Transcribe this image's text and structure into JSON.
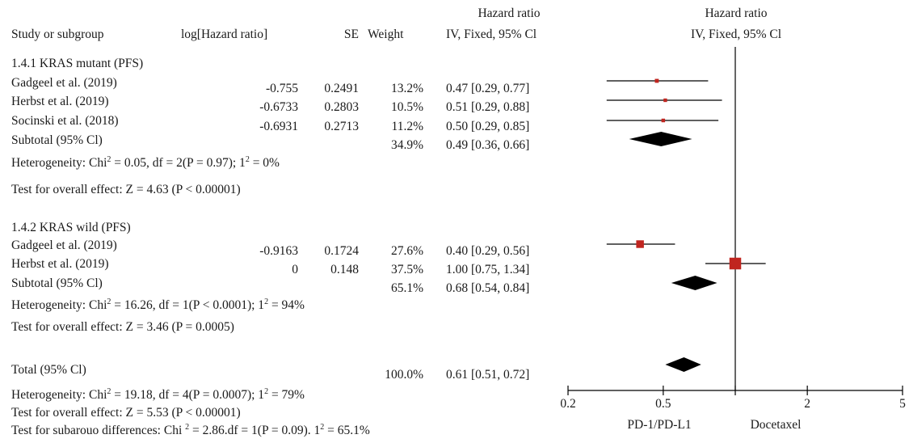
{
  "headers": {
    "study": "Study or subgroup",
    "loghr": "log[Hazard ratio]",
    "se": "SE",
    "weight": "Weight",
    "hr_top": "Hazard ratio",
    "hr_method": "IV, Fixed, 95% Cl",
    "plot_top": "Hazard ratio",
    "plot_method": "IV, Fixed, 95% Cl"
  },
  "groups": [
    {
      "title": "1.4.1 KRAS mutant (PFS)",
      "studies": [
        {
          "name": "Gadgeel et al. (2019)",
          "loghr": "-0.755",
          "se": "0.2491",
          "weight": "13.2%",
          "ci_text": "0.47 [0.29, 0.77]"
        },
        {
          "name": "Herbst et al. (2019)",
          "loghr": "-0.6733",
          "se": "0.2803",
          "weight": "10.5%",
          "ci_text": "0.51 [0.29, 0.88]"
        },
        {
          "name": "Socinski et al. (2018)",
          "loghr": "-0.6931",
          "se": "0.2713",
          "weight": "11.2%",
          "ci_text": "0.50 [0.29, 0.85]"
        }
      ],
      "subtotal": {
        "label": "Subtotal (95% Cl)",
        "weight": "34.9%",
        "ci_text": "0.49 [0.36, 0.66]"
      },
      "heterogeneity": {
        "pre": "Heterogeneity: Chi",
        "mid": " = 0.05, df = 2(P = 0.97); 1",
        "post": " = 0%"
      },
      "overall": "Test for overall effect: Z = 4.63 (P < 0.00001)"
    },
    {
      "title": "1.4.2 KRAS wild (PFS)",
      "studies": [
        {
          "name": "Gadgeel et al. (2019)",
          "loghr": "-0.9163",
          "se": "0.1724",
          "weight": "27.6%",
          "ci_text": "0.40 [0.29, 0.56]"
        },
        {
          "name": "Herbst et al. (2019)",
          "loghr": "0",
          "se": "0.148",
          "weight": "37.5%",
          "ci_text": "1.00 [0.75, 1.34]"
        }
      ],
      "subtotal": {
        "label": "Subtotal (95% Cl)",
        "weight": "65.1%",
        "ci_text": "0.68 [0.54, 0.84]"
      },
      "heterogeneity": {
        "pre": "Heterogeneity: Chi",
        "mid": " = 16.26, df = 1(P < 0.0001); 1",
        "post": " = 94%"
      },
      "overall": "Test for overall effect: Z = 3.46 (P = 0.0005)"
    }
  ],
  "total": {
    "label": "Total (95% Cl)",
    "weight": "100.0%",
    "ci_text": "0.61 [0.51, 0.72]",
    "heterogeneity": {
      "pre": "Heterogeneity: Chi",
      "mid": " = 19.18, df = 4(P = 0.0007); 1",
      "post": " = 79%"
    },
    "overall": "Test for overall effect: Z = 5.53 (P < 0.00001)",
    "subgroup": {
      "pre": "Test for subarouo differences: Chi ",
      "mid": " = 2.86.df = 1(P = 0.09). 1",
      "post": " = 65.1%"
    }
  },
  "superscript": "2",
  "axis": {
    "left_label": "PD-1/PD-L1",
    "right_label": "Docetaxel"
  },
  "colors": {
    "marker": "#c0251f",
    "diamond": "#000000",
    "lines": "#000000"
  },
  "chart_data": {
    "type": "forest",
    "scale": "log",
    "xlim": [
      0.2,
      5
    ],
    "ticks": [
      0.2,
      0.5,
      1,
      2,
      5
    ],
    "tick_labels": [
      "0.2",
      "0.5",
      "",
      "2",
      "5"
    ],
    "reference_line": 1,
    "studies": [
      {
        "group": "1.4.1 KRAS mutant (PFS)",
        "name": "Gadgeel et al. (2019)",
        "hr": 0.47,
        "lo": 0.29,
        "hi": 0.77,
        "weight": 13.2
      },
      {
        "group": "1.4.1 KRAS mutant (PFS)",
        "name": "Herbst et al. (2019)",
        "hr": 0.51,
        "lo": 0.29,
        "hi": 0.88,
        "weight": 10.5
      },
      {
        "group": "1.4.1 KRAS mutant (PFS)",
        "name": "Socinski et al. (2018)",
        "hr": 0.5,
        "lo": 0.29,
        "hi": 0.85,
        "weight": 11.2
      },
      {
        "group": "1.4.2 KRAS wild (PFS)",
        "name": "Gadgeel et al. (2019)",
        "hr": 0.4,
        "lo": 0.29,
        "hi": 0.56,
        "weight": 27.6
      },
      {
        "group": "1.4.2 KRAS wild (PFS)",
        "name": "Herbst et al. (2019)",
        "hr": 1.0,
        "lo": 0.75,
        "hi": 1.34,
        "weight": 37.5
      }
    ],
    "summaries": [
      {
        "name": "Subtotal (95% Cl)",
        "group": "1.4.1 KRAS mutant (PFS)",
        "hr": 0.49,
        "lo": 0.36,
        "hi": 0.66
      },
      {
        "name": "Subtotal (95% Cl)",
        "group": "1.4.2 KRAS wild (PFS)",
        "hr": 0.68,
        "lo": 0.54,
        "hi": 0.84
      },
      {
        "name": "Total (95% Cl)",
        "group": "",
        "hr": 0.61,
        "lo": 0.51,
        "hi": 0.72
      }
    ]
  }
}
